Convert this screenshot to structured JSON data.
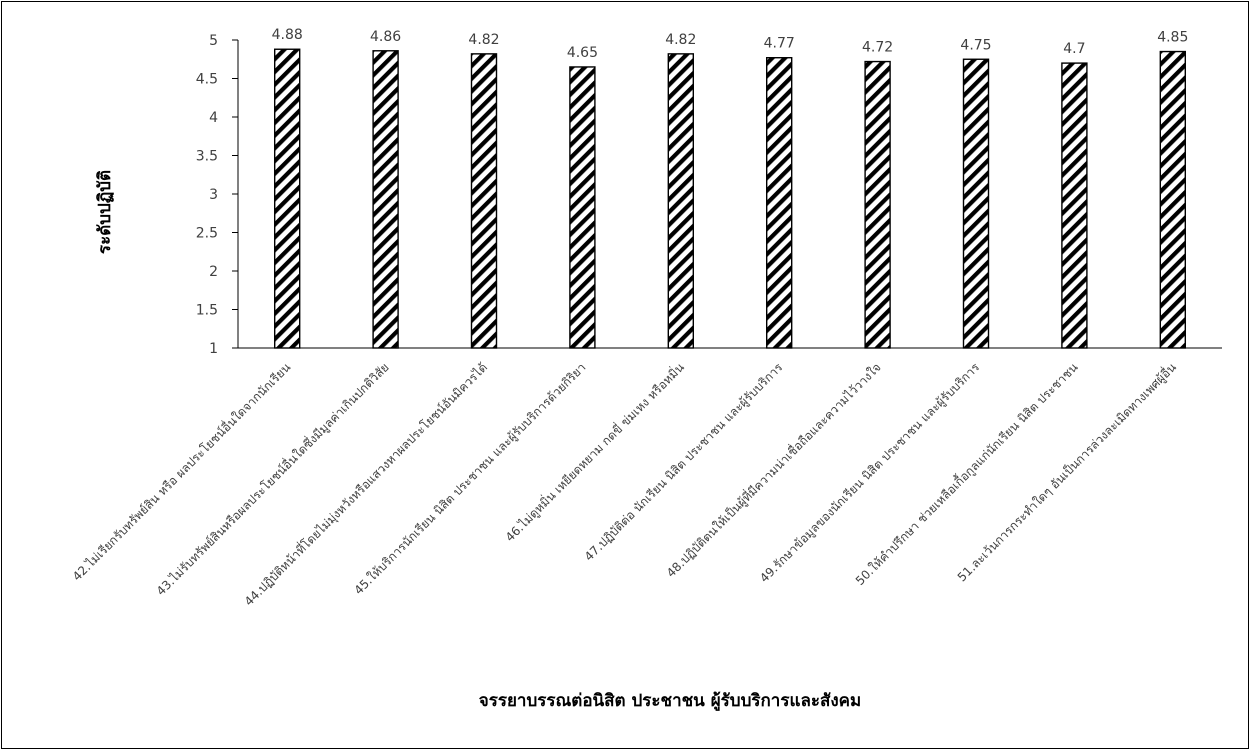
{
  "chart_data": {
    "type": "bar",
    "title": "",
    "xlabel": "จรรยาบรรณต่อนิสิต  ประชาชน  ผู้รับบริการและสังคม",
    "ylabel": "ระดับปฏิบัติ",
    "ylim": [
      1,
      5
    ],
    "yticks": [
      "1",
      "1.5",
      "2",
      "2.5",
      "3",
      "3.5",
      "4",
      "4.5",
      "5"
    ],
    "grid": false,
    "legend": "none",
    "pattern": "diagonal-hatch",
    "colors": {
      "bar_fill": "#ffffff",
      "hatch": "#000000",
      "axis": "#000000",
      "text": "#404040"
    },
    "categories": [
      "42.ไม่เรียกรับทรัพย์สิน หรือ ผลประโยชน์อื่นใดจากนักเรียน",
      "43.ไม่รับทรัพย์สินหรือผลประโยชน์อื่นใดซึ่งมีมูลค่าเกินปกติวิสัย",
      "44.ปฏิบัติหน้าที่โดยไม่มุ่งหวังหรือแสวงหาผลประโยชน์อันมิควรได้",
      "45.ให้บริการนักเรียน  นิสิต  ประชาชน  และผู้รับบริการด้วยกิริยา",
      "46.ไม่ดูหมิ่น  เหยียดหยาม  กดขี่  ข่มเหง  หรือหมิ่น",
      "47.ปฏิบัติต่อ  นักเรียน  นิสิต  ประชาชน  และผู้รับบริการ",
      "48.ปฏิบัติตนให้เป็นผู้ที่มีความน่าเชื่อถือและความไว้วางใจ",
      "49.รักษาข้อมูลของนักเรียน  นิสิต  ประชาชน  และผู้รับบริการ",
      "50.ให้คำปรึกษา  ช่วยเหลือเกื้อกูลแก่นักเรียน  นิสิต  ประชาชน",
      "51.ละเว้นการกระทำใดๆ อันเป็นการล่วงละเมิดทางเพศผู้อื่น"
    ],
    "values": [
      4.88,
      4.86,
      4.82,
      4.65,
      4.82,
      4.77,
      4.72,
      4.75,
      4.7,
      4.85
    ],
    "data_labels": [
      "4.88",
      "4.86",
      "4.82",
      "4.65",
      "4.82",
      "4.77",
      "4.72",
      "4.75",
      "4.7",
      "4.85"
    ]
  }
}
